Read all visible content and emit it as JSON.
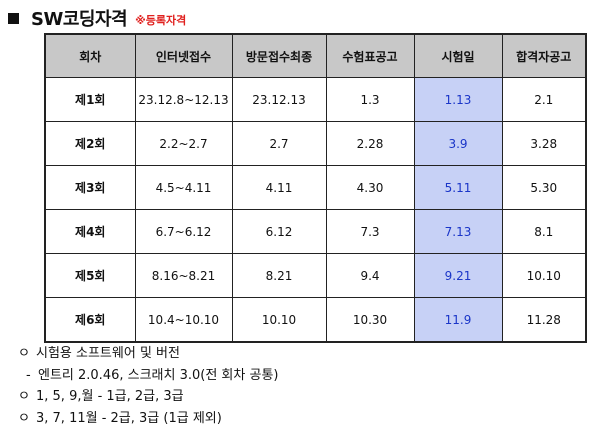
{
  "title": "SW코딩자격",
  "title_note": "※등록자격",
  "table": {
    "headers": [
      "회차",
      "인터넷접수",
      "방문접수최종",
      "수험표공고",
      "시험일",
      "합격자공고"
    ],
    "rows": [
      {
        "round": "제1회",
        "online": "23.12.8~12.13",
        "visit": "23.12.13",
        "ticket": "1.3",
        "exam": "1.13",
        "result": "2.1"
      },
      {
        "round": "제2회",
        "online": "2.2~2.7",
        "visit": "2.7",
        "ticket": "2.28",
        "exam": "3.9",
        "result": "3.28"
      },
      {
        "round": "제3회",
        "online": "4.5~4.11",
        "visit": "4.11",
        "ticket": "4.30",
        "exam": "5.11",
        "result": "5.30"
      },
      {
        "round": "제4회",
        "online": "6.7~6.12",
        "visit": "6.12",
        "ticket": "7.3",
        "exam": "7.13",
        "result": "8.1"
      },
      {
        "round": "제5회",
        "online": "8.16~8.21",
        "visit": "8.21",
        "ticket": "9.4",
        "exam": "9.21",
        "result": "10.10"
      },
      {
        "round": "제6회",
        "online": "10.4~10.10",
        "visit": "10.10",
        "ticket": "10.30",
        "exam": "11.9",
        "result": "11.28"
      }
    ]
  },
  "notes": [
    {
      "bullet": "ㅇ",
      "text": "시험용 소프트웨어 및 버전"
    },
    {
      "bullet": "-",
      "text": "엔트리 2.0.46, 스크래치 3.0(전 회차 공통)"
    },
    {
      "bullet": "ㅇ",
      "text": "1, 5, 9,월 - 1급, 2급, 3급"
    },
    {
      "bullet": "ㅇ",
      "text": "3, 7, 11월 - 2급, 3급 (1급 제외)"
    }
  ],
  "colors": {
    "exam_highlight": "#c7d1f6",
    "exam_text": "#1a35c8",
    "header_bg": "#c8c8c8",
    "title_note": "#e0211f"
  }
}
